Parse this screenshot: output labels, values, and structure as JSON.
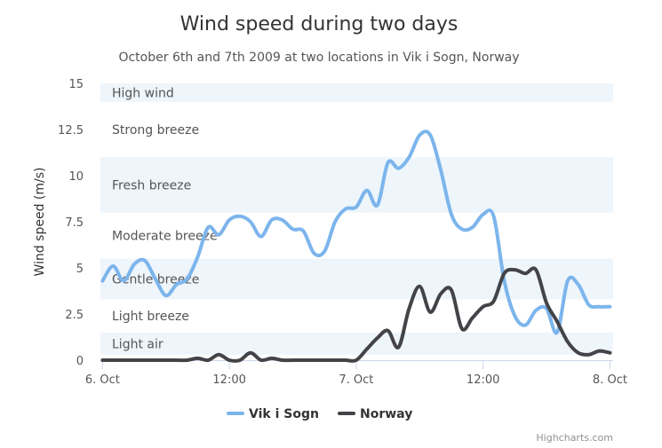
{
  "chart_data": {
    "type": "line",
    "title": "Wind speed during two days",
    "subtitle": "October 6th and 7th 2009 at two locations in Vik i Sogn, Norway",
    "ylabel": "Wind speed (m/s)",
    "ylim": [
      0,
      15
    ],
    "y_ticks": [
      0,
      2.5,
      5,
      7.5,
      10,
      12.5,
      15
    ],
    "y_tick_labels": [
      "0",
      "2.5",
      "5",
      "7.5",
      "10",
      "12.5",
      "15"
    ],
    "xlim_hours": [
      -0.2,
      48.3
    ],
    "x_ticks": [
      {
        "hour": 0,
        "label": "6. Oct"
      },
      {
        "hour": 12,
        "label": "12:00"
      },
      {
        "hour": 24,
        "label": "7. Oct"
      },
      {
        "hour": 36,
        "label": "12:00"
      },
      {
        "hour": 48,
        "label": "8. Oct"
      }
    ],
    "plot_bands": [
      {
        "from": 0.3,
        "to": 1.5,
        "label": "Light air",
        "shaded": true
      },
      {
        "from": 1.5,
        "to": 3.3,
        "label": "Light breeze",
        "shaded": false
      },
      {
        "from": 3.3,
        "to": 5.5,
        "label": "Gentle breeze",
        "shaded": true
      },
      {
        "from": 5.5,
        "to": 8,
        "label": "Moderate breeze",
        "shaded": false
      },
      {
        "from": 8,
        "to": 11,
        "label": "Fresh breeze",
        "shaded": true
      },
      {
        "from": 11,
        "to": 14,
        "label": "Strong breeze",
        "shaded": false
      },
      {
        "from": 14,
        "to": 15,
        "label": "High wind",
        "shaded": true
      }
    ],
    "band_color": "#eef5fb",
    "grid": false,
    "legend_position": "bottom-center",
    "series": [
      {
        "name": "Vik i Sogn",
        "color": "#7cb5ec",
        "x": [
          0,
          1,
          2,
          3,
          4,
          5,
          6,
          7,
          8,
          9,
          10,
          11,
          12,
          13,
          14,
          15,
          16,
          17,
          18,
          19,
          20,
          21,
          22,
          23,
          24,
          25,
          26,
          27,
          28,
          29,
          30,
          31,
          32,
          33,
          34,
          35,
          36,
          37,
          38,
          39,
          40,
          41,
          42,
          43,
          44,
          45,
          46,
          47,
          48
        ],
        "values": [
          4.3,
          5.1,
          4.3,
          5.2,
          5.4,
          4.4,
          3.5,
          4.1,
          4.4,
          5.6,
          7.2,
          6.8,
          7.6,
          7.8,
          7.5,
          6.7,
          7.6,
          7.6,
          7.1,
          7.0,
          5.8,
          5.9,
          7.5,
          8.2,
          8.3,
          9.2,
          8.4,
          10.7,
          10.4,
          11.0,
          12.2,
          12.2,
          10.3,
          7.9,
          7.1,
          7.2,
          7.9,
          7.8,
          4.3,
          2.4,
          1.9,
          2.7,
          2.8,
          1.5,
          4.3,
          4.1,
          3.0,
          2.9,
          2.9
        ]
      },
      {
        "name": "Norway",
        "color": "#434348",
        "x": [
          0,
          1,
          2,
          3,
          4,
          5,
          6,
          7,
          8,
          9,
          10,
          11,
          12,
          13,
          14,
          15,
          16,
          17,
          18,
          19,
          20,
          21,
          22,
          23,
          24,
          25,
          26,
          27,
          28,
          29,
          30,
          31,
          32,
          33,
          34,
          35,
          36,
          37,
          38,
          39,
          40,
          41,
          42,
          43,
          44,
          45,
          46,
          47,
          48
        ],
        "values": [
          0,
          0,
          0,
          0,
          0,
          0,
          0,
          0,
          0,
          0.1,
          0,
          0.3,
          0,
          0,
          0.4,
          0,
          0.1,
          0,
          0,
          0,
          0,
          0,
          0,
          0,
          0.0,
          0.6,
          1.2,
          1.6,
          0.7,
          2.8,
          4.0,
          2.6,
          3.6,
          3.8,
          1.7,
          2.3,
          2.9,
          3.2,
          4.7,
          4.9,
          4.7,
          4.9,
          3.1,
          2.1,
          1.0,
          0.4,
          0.3,
          0.5,
          0.4
        ]
      }
    ],
    "credits": "Highcharts.com"
  }
}
